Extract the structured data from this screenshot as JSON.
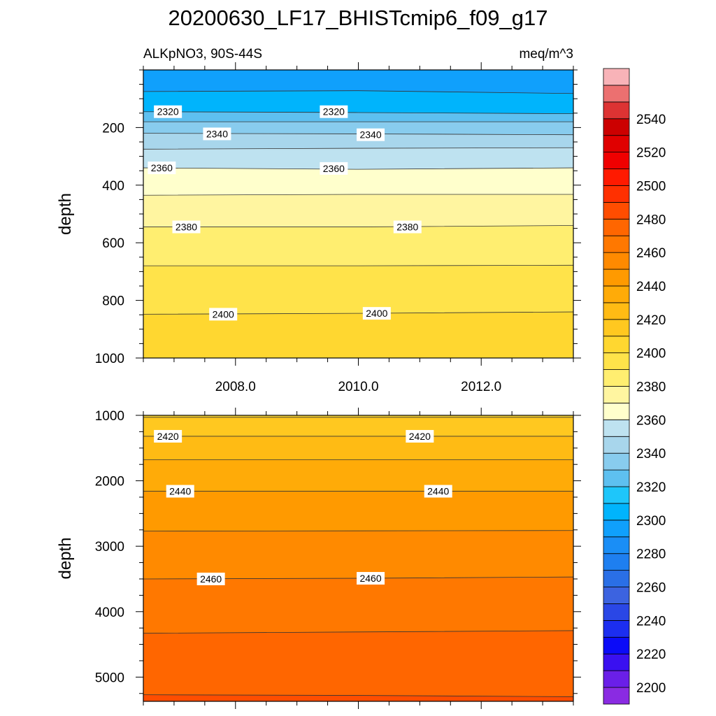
{
  "title": "20200630_LF17_BHISTcmip6_f09_g17",
  "subtitle_left": "ALKpNO3, 90S-44S",
  "subtitle_right": "meq/m^3",
  "chart_data": [
    {
      "type": "heatmap",
      "panel": "upper",
      "ylabel": "depth",
      "xlim": [
        2006.5,
        2013.5
      ],
      "ylim": [
        1000,
        0
      ],
      "y_ticks": [
        200,
        400,
        600,
        800,
        1000
      ],
      "x_ticks": [
        2008,
        2010,
        2012
      ],
      "x_tick_labels": [
        "2008.0",
        "2010.0",
        "2012.0"
      ],
      "contour_lines": [
        {
          "level": 2300,
          "depths": [
            75,
            72,
            82
          ]
        },
        {
          "level": 2320,
          "depths": [
            145,
            148,
            152
          ]
        },
        {
          "level": 2330,
          "depths": [
            180,
            180,
            180
          ]
        },
        {
          "level": 2340,
          "depths": [
            220,
            222,
            225
          ]
        },
        {
          "level": 2350,
          "depths": [
            275,
            272,
            270
          ]
        },
        {
          "level": 2360,
          "depths": [
            340,
            345,
            340
          ]
        },
        {
          "level": 2370,
          "depths": [
            435,
            432,
            432
          ]
        },
        {
          "level": 2380,
          "depths": [
            545,
            545,
            540
          ]
        },
        {
          "level": 2390,
          "depths": [
            680,
            680,
            678
          ]
        },
        {
          "level": 2400,
          "depths": [
            848,
            845,
            840
          ]
        }
      ],
      "labels": [
        {
          "text": "2320",
          "x": 2006.9,
          "depth": 145
        },
        {
          "text": "2320",
          "x": 2009.6,
          "depth": 145
        },
        {
          "text": "2340",
          "x": 2007.7,
          "depth": 222
        },
        {
          "text": "2340",
          "x": 2010.2,
          "depth": 225
        },
        {
          "text": "2360",
          "x": 2006.8,
          "depth": 340
        },
        {
          "text": "2360",
          "x": 2009.6,
          "depth": 342
        },
        {
          "text": "2380",
          "x": 2007.2,
          "depth": 545
        },
        {
          "text": "2380",
          "x": 2010.8,
          "depth": 545
        },
        {
          "text": "2400",
          "x": 2007.8,
          "depth": 848
        },
        {
          "text": "2400",
          "x": 2010.3,
          "depth": 845
        }
      ]
    },
    {
      "type": "heatmap",
      "panel": "lower",
      "ylabel": "depth",
      "xlim": [
        2006.5,
        2013.5
      ],
      "ylim": [
        5370,
        1000
      ],
      "y_ticks": [
        1000,
        2000,
        3000,
        4000,
        5000
      ],
      "contour_lines": [
        {
          "level": 2410,
          "depths": [
            1030,
            1030,
            1030
          ]
        },
        {
          "level": 2420,
          "depths": [
            1320,
            1320,
            1320
          ]
        },
        {
          "level": 2430,
          "depths": [
            1680,
            1680,
            1680
          ]
        },
        {
          "level": 2440,
          "depths": [
            2160,
            2160,
            2160
          ]
        },
        {
          "level": 2450,
          "depths": [
            2770,
            2765,
            2760
          ]
        },
        {
          "level": 2460,
          "depths": [
            3500,
            3490,
            3470
          ]
        },
        {
          "level": 2470,
          "depths": [
            4330,
            4310,
            4290
          ]
        },
        {
          "level": 2480,
          "depths": [
            5270,
            5280,
            5300
          ]
        }
      ],
      "labels": [
        {
          "text": "2420",
          "x": 2006.9,
          "depth": 1320
        },
        {
          "text": "2420",
          "x": 2011.0,
          "depth": 1320
        },
        {
          "text": "2440",
          "x": 2007.1,
          "depth": 2160
        },
        {
          "text": "2440",
          "x": 2011.3,
          "depth": 2160
        },
        {
          "text": "2460",
          "x": 2007.6,
          "depth": 3500
        },
        {
          "text": "2460",
          "x": 2010.2,
          "depth": 3490
        }
      ]
    }
  ],
  "colorbar": {
    "levels": [
      2190,
      2200,
      2210,
      2220,
      2230,
      2240,
      2250,
      2260,
      2270,
      2280,
      2290,
      2300,
      2310,
      2320,
      2330,
      2340,
      2350,
      2360,
      2370,
      2380,
      2390,
      2400,
      2410,
      2420,
      2430,
      2440,
      2450,
      2460,
      2470,
      2480,
      2490,
      2500,
      2510,
      2520,
      2530,
      2540,
      2550,
      2560
    ],
    "colors": [
      "#8a2be2",
      "#6a1fe8",
      "#3a10f0",
      "#0b0bf8",
      "#1c2ef0",
      "#2a47e6",
      "#3c63e0",
      "#2a6fe6",
      "#1e7ff0",
      "#1a8ef6",
      "#10a0fc",
      "#00b4fc",
      "#1ec6fa",
      "#5ec0f0",
      "#88ccee",
      "#a8d6ec",
      "#bee2f0",
      "#ffffcc",
      "#fff5a0",
      "#ffee70",
      "#ffe34a",
      "#ffd730",
      "#ffc820",
      "#ffbb14",
      "#ffab08",
      "#ff9a00",
      "#ff8a00",
      "#ff7800",
      "#ff6600",
      "#ff4d00",
      "#ff3000",
      "#ff1a00",
      "#f00000",
      "#e00000",
      "#cc0000",
      "#dd3333",
      "#ec7070",
      "#f8b3b8"
    ],
    "tick_labels": [
      "2200",
      "2220",
      "2240",
      "2260",
      "2280",
      "2300",
      "2320",
      "2340",
      "2360",
      "2380",
      "2400",
      "2420",
      "2440",
      "2460",
      "2480",
      "2500",
      "2520",
      "2540"
    ]
  }
}
